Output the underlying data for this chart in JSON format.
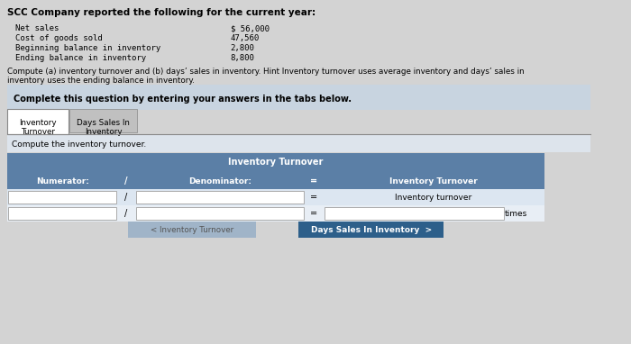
{
  "title": "SCC Company reported the following for the current year:",
  "data_labels": [
    "Net sales",
    "Cost of goods sold",
    "Beginning balance in inventory",
    "Ending balance in inventory"
  ],
  "data_values": [
    "$ 56,000",
    "47,560",
    "2,800",
    "8,800"
  ],
  "hint_text": "Compute (a) inventory turnover and (b) days’ sales in inventory. Hint Inventory turnover uses average inventory and days’ sales in\ninventory uses the ending balance in inventory.",
  "tab_instruction": "Complete this question by entering your answers in the tabs below.",
  "tab1": "Inventory\nTurnover",
  "tab2": "Days Sales In\nInventory",
  "section_label": "Compute the inventory turnover.",
  "table_header": "Inventory Turnover",
  "col1_header": "Numerator:",
  "col2_divider": "/",
  "col3_header": "Denominator:",
  "col4_eq": "=",
  "col5_header": "Inventory Turnover",
  "row2_label": "Inventory turnover",
  "row3_label": "times",
  "btn1_text": "< Inventory Turnover",
  "btn2_text": "Days Sales In Inventory  >",
  "bg_color": "#d3d3d3",
  "tab_active_bg": "#ffffff",
  "tab_inactive_bg": "#c0c0c0",
  "table_header_bg": "#5b7fa6",
  "table_col_header_bg": "#5b7fa6",
  "table_row_bg": "#dce6f1",
  "table_row2_bg": "#e8eef5",
  "btn1_bg": "#a0b4c8",
  "btn2_bg": "#2d5f8a",
  "btn2_text_color": "#ffffff",
  "btn1_text_color": "#555555",
  "header_text_color": "#ffffff",
  "section_bg": "#c8d4e0"
}
